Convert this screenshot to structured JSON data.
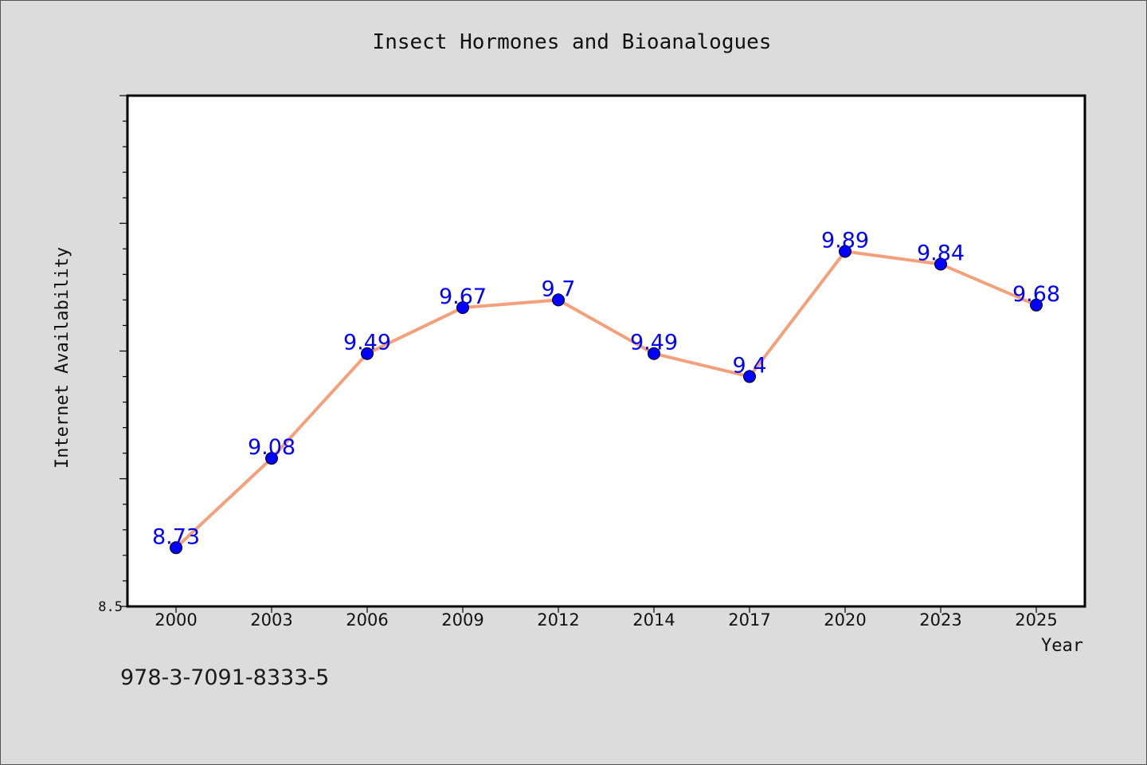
{
  "chart_data": {
    "type": "line",
    "title": "Insect Hormones and Bioanalogues",
    "xlabel": "Year",
    "ylabel": "Internet Availability",
    "categories": [
      "2000",
      "2003",
      "2006",
      "2009",
      "2012",
      "2014",
      "2017",
      "2020",
      "2023",
      "2025"
    ],
    "series": [
      {
        "values": [
          8.73,
          9.08,
          9.49,
          9.67,
          9.7,
          9.49,
          9.4,
          9.89,
          9.84,
          9.68
        ],
        "line_color": "#f4a07a",
        "marker_color": "#0000ff",
        "label_color": "#0000ff"
      }
    ],
    "data_labels": [
      "8.73",
      "9.08",
      "9.49",
      "9.67",
      "9.7",
      "9.49",
      "9.4",
      "9.89",
      "9.84",
      "9.68"
    ],
    "y_tick_labels": [
      "8.5"
    ],
    "ylim": [
      8.5,
      10.5
    ],
    "grid": false,
    "legend": "none"
  },
  "footer": {
    "code": "978-3-7091-8333-5"
  }
}
